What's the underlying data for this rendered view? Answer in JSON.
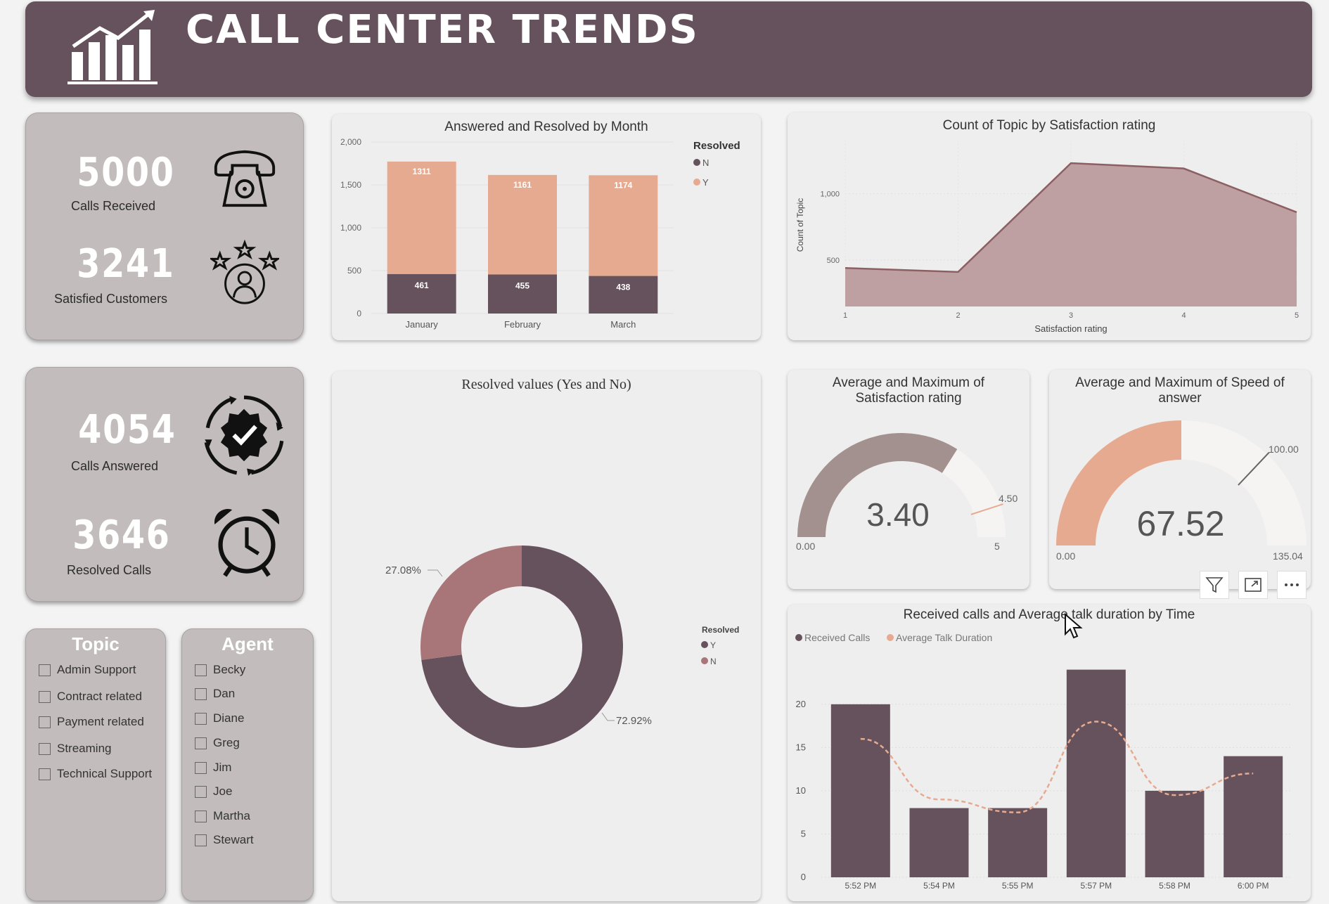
{
  "header": {
    "title": "CALL CENTER TRENDS"
  },
  "kpis": {
    "calls_received": {
      "value": "5000",
      "label": "Calls Received"
    },
    "satisfied": {
      "value": "3241",
      "label": "Satisfied Customers"
    },
    "answered": {
      "value": "4054",
      "label": "Calls Answered"
    },
    "resolved": {
      "value": "3646",
      "label": "Resolved Calls"
    }
  },
  "slicers": {
    "topic": {
      "title": "Topic",
      "items": [
        "Admin Support",
        "Contract related",
        "Payment related",
        "Streaming",
        "Technical Support"
      ]
    },
    "agent": {
      "title": "Agent",
      "items": [
        "Becky",
        "Dan",
        "Diane",
        "Greg",
        "Jim",
        "Joe",
        "Martha",
        "Stewart"
      ]
    }
  },
  "charts": {
    "answered_resolved": {
      "title": "Answered and Resolved by Month",
      "legend_title": "Resolved",
      "legend": [
        "N",
        "Y"
      ]
    },
    "topic_satisfaction": {
      "title": "Count of Topic by Satisfaction rating",
      "xlabel": "Satisfaction rating",
      "ylabel": "Count of Topic"
    },
    "resolved_donut": {
      "title": "Resolved values (Yes and No)",
      "legend_title": "Resolved",
      "legend": [
        "Y",
        "N"
      ],
      "label_n": "27.08%",
      "label_y": "72.92%"
    },
    "gauge_satisfaction": {
      "title": "Average and Maximum of Satisfaction rating",
      "value_text": "3.40",
      "min_text": "0.00",
      "max_text": "5",
      "target_text": "4.50"
    },
    "gauge_speed": {
      "title": "Average and Maximum of Speed of answer",
      "value_text": "67.52",
      "min_text": "0.00",
      "max_text": "135.04",
      "target_text": "100.00"
    },
    "calls_time": {
      "title": "Received calls and Average talk duration by Time",
      "legend": [
        "Received Calls",
        "Average Talk Duration"
      ]
    }
  },
  "colors": {
    "plum": "#66525d",
    "peach": "#e6aa90",
    "rose": "#a87678",
    "mauve": "#a3918f",
    "area": "#bfa0a2"
  },
  "chart_data": [
    {
      "id": "answered_resolved",
      "type": "bar",
      "stacked": true,
      "categories": [
        "January",
        "February",
        "March"
      ],
      "series": [
        {
          "name": "N",
          "values": [
            461,
            455,
            438
          ]
        },
        {
          "name": "Y",
          "values": [
            1311,
            1161,
            1174
          ]
        }
      ],
      "yticks": [
        "0",
        "500",
        "1,000",
        "1,500",
        "2,000"
      ],
      "ylim": [
        0,
        2000
      ],
      "legend_position": "right"
    },
    {
      "id": "topic_satisfaction",
      "type": "area",
      "x": [
        1,
        2,
        3,
        4,
        5
      ],
      "values": [
        440,
        410,
        1230,
        1190,
        860
      ],
      "ylim": [
        150,
        1400
      ],
      "yticks": [
        "500",
        "1,000"
      ],
      "xlabel": "Satisfaction rating",
      "ylabel": "Count of Topic"
    },
    {
      "id": "resolved_donut",
      "type": "pie",
      "donut": true,
      "labels": [
        "Y",
        "N"
      ],
      "values": [
        72.92,
        27.08
      ],
      "legend_position": "right"
    },
    {
      "id": "gauge_satisfaction",
      "type": "gauge",
      "value": 3.4,
      "min": 0,
      "max": 5,
      "target": 4.5
    },
    {
      "id": "gauge_speed",
      "type": "gauge",
      "value": 67.52,
      "min": 0,
      "max": 135.04,
      "target": 100
    },
    {
      "id": "calls_time",
      "type": "bar",
      "categories": [
        "5:52 PM",
        "5:54 PM",
        "5:55 PM",
        "5:57 PM",
        "5:58 PM",
        "6:00 PM"
      ],
      "series": [
        {
          "name": "Received Calls",
          "values": [
            20,
            8,
            8,
            24,
            10,
            14
          ]
        },
        {
          "name": "Average Talk Duration",
          "values": [
            16,
            9,
            7.5,
            18,
            9.5,
            12
          ]
        }
      ],
      "yticks": [
        "0",
        "5",
        "10",
        "15",
        "20"
      ],
      "ylim": [
        0,
        26
      ],
      "legend_position": "top-left"
    }
  ]
}
